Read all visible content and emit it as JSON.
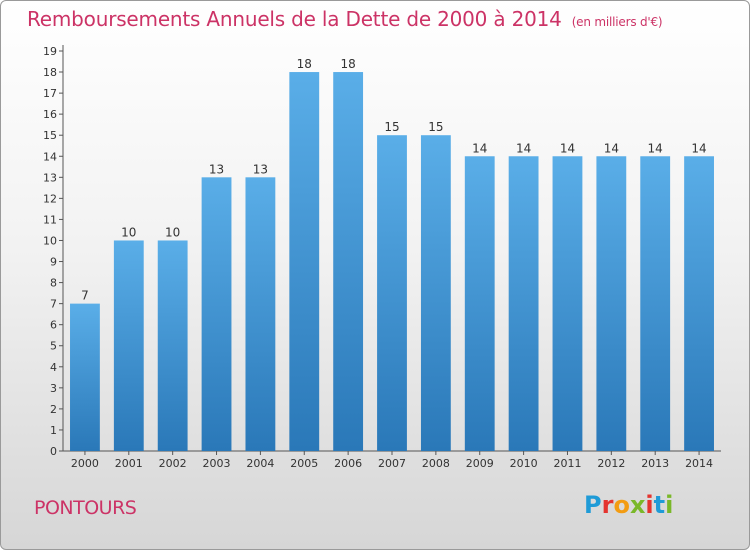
{
  "title": "Remboursements Annuels de la Dette de 2000 à 2014",
  "unit": "(en milliers d'€)",
  "place": "PONTOURS",
  "logo": {
    "text": "Proxiti",
    "colors": [
      "#1f9bd7",
      "#e4342f",
      "#f39c12",
      "#7ab829",
      "#e4342f",
      "#1f9bd7",
      "#7ab829"
    ]
  },
  "colors": {
    "bar_top": "#5aaee8",
    "bar_bottom": "#2a78b8",
    "label": "#333333",
    "axis": "#555555"
  },
  "chart_data": {
    "type": "bar",
    "categories": [
      "2000",
      "2001",
      "2002",
      "2003",
      "2004",
      "2005",
      "2006",
      "2007",
      "2008",
      "2009",
      "2010",
      "2011",
      "2012",
      "2013",
      "2014"
    ],
    "values": [
      7,
      10,
      10,
      13,
      13,
      18,
      18,
      15,
      15,
      14,
      14,
      14,
      14,
      14,
      14
    ],
    "ylim": [
      0,
      19
    ],
    "yticks": [
      0,
      1,
      2,
      3,
      4,
      5,
      6,
      7,
      8,
      9,
      10,
      11,
      12,
      13,
      14,
      15,
      16,
      17,
      18,
      19
    ],
    "grid": false
  }
}
